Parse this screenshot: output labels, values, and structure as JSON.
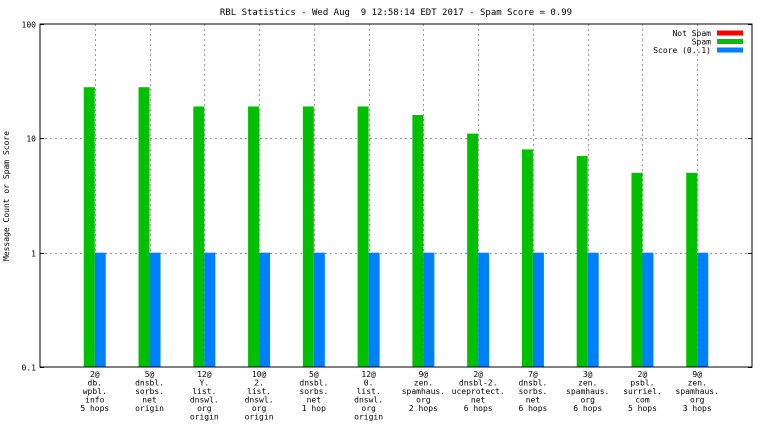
{
  "chart_data": {
    "type": "bar",
    "title": "RBL Statistics - Wed Aug  9 12:58:14 EDT 2017 - Spam Score = 0.99",
    "ylabel": "Message Count or Spam Score",
    "xlabel": "",
    "yscale": "log",
    "ylim": [
      0.1,
      100
    ],
    "yticks": [
      {
        "value": 0.1,
        "label": "0.1"
      },
      {
        "value": 1,
        "label": "1"
      },
      {
        "value": 10,
        "label": "10"
      },
      {
        "value": 100,
        "label": "100"
      }
    ],
    "grid": true,
    "legend_position": "top-right",
    "categories": [
      [
        "2@",
        "db.",
        "wpbl.",
        "info",
        "5 hops"
      ],
      [
        "5@",
        "dnsbl.",
        "sorbs.",
        "net",
        "origin"
      ],
      [
        "12@",
        "Y.",
        "list.",
        "dnswl.",
        "org",
        "origin"
      ],
      [
        "10@",
        "2.",
        "list.",
        "dnswl.",
        "org",
        "origin"
      ],
      [
        "5@",
        "dnsbl.",
        "sorbs.",
        "net",
        "1 hop"
      ],
      [
        "12@",
        "0.",
        "list.",
        "dnswl.",
        "org",
        "origin"
      ],
      [
        "9@",
        "zen.",
        "spamhaus.",
        "org",
        "2 hops"
      ],
      [
        "2@",
        "dnsbl-2.",
        "uceprotect.",
        "net",
        "6 hops"
      ],
      [
        "7@",
        "dnsbl.",
        "sorbs.",
        "net",
        "6 hops"
      ],
      [
        "3@",
        "zen.",
        "spamhaus.",
        "org",
        "6 hops"
      ],
      [
        "2@",
        "psbl.",
        "surriel.",
        "com",
        "5 hops"
      ],
      [
        "9@",
        "zen.",
        "spamhaus.",
        "org",
        "3 hops"
      ]
    ],
    "series": [
      {
        "name": "Not Spam",
        "color": "#ff0000",
        "values": [
          0,
          0,
          0,
          0,
          0,
          0,
          0,
          0,
          0,
          0,
          0,
          0
        ]
      },
      {
        "name": "Spam",
        "color": "#00c000",
        "values": [
          28,
          28,
          19,
          19,
          19,
          19,
          16,
          11,
          8,
          7,
          5,
          5
        ]
      },
      {
        "name": "Score (0..1)",
        "color": "#0080ff",
        "values": [
          1,
          1,
          1,
          1,
          1,
          1,
          1,
          1,
          1,
          1,
          1,
          1
        ]
      }
    ]
  }
}
